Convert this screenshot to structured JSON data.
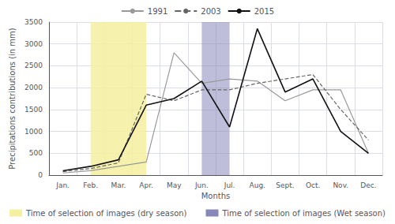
{
  "chart_data": {
    "type": "line",
    "xlabel": "Months",
    "ylabel": "Precipitations contributions (in mm)",
    "categories": [
      "Jan.",
      "Feb.",
      "Mar.",
      "Apr.",
      "May",
      "Jun.",
      "Jul.",
      "Aug.",
      "Sept.",
      "Oct.",
      "Nov.",
      "Dec."
    ],
    "series": [
      {
        "name": "1991",
        "color": "#999999",
        "line_style": "solid",
        "values": [
          50,
          100,
          200,
          300,
          2800,
          2100,
          2200,
          2150,
          1700,
          1950,
          1950,
          500
        ]
      },
      {
        "name": "2003",
        "color": "#666666",
        "line_style": "dashed",
        "values": [
          80,
          150,
          280,
          1850,
          1700,
          1950,
          1950,
          2100,
          2200,
          2300,
          1500,
          800
        ]
      },
      {
        "name": "2015",
        "color": "#111111",
        "line_style": "solid",
        "values": [
          100,
          200,
          350,
          1600,
          1750,
          2150,
          1100,
          3350,
          1900,
          2200,
          1000,
          500
        ]
      }
    ],
    "shaded_regions": [
      {
        "label": "Time of selection of images (dry season)",
        "color": "#f5f0a0",
        "start": "Feb.",
        "end": "Apr."
      },
      {
        "label": "Time of selection of images (Wet season)",
        "color": "#8888bb",
        "start": "Jun.",
        "end": "Jul."
      }
    ],
    "ylim": [
      0,
      3500
    ],
    "yticks": [
      0,
      500,
      1000,
      1500,
      2000,
      2500,
      3000,
      3500
    ],
    "grid": true
  }
}
